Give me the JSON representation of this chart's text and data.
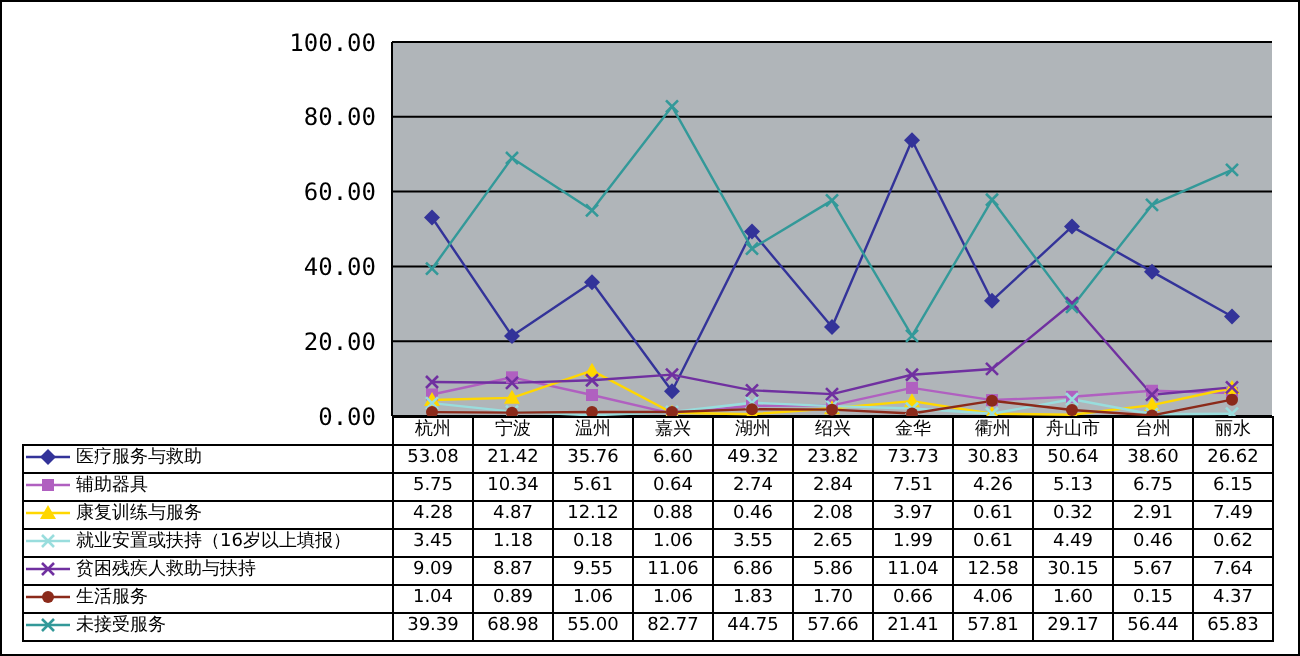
{
  "chart_data": {
    "type": "line",
    "categories": [
      "杭州",
      "宁波",
      "温州",
      "嘉兴",
      "湖州",
      "绍兴",
      "金华",
      "衢州",
      "舟山市",
      "台州",
      "丽水"
    ],
    "ylim": [
      0,
      100
    ],
    "yticks": [
      {
        "value": 0,
        "label": "0.00"
      },
      {
        "value": 20,
        "label": "20.00"
      },
      {
        "value": 40,
        "label": "40.00"
      },
      {
        "value": 60,
        "label": "60.00"
      },
      {
        "value": 80,
        "label": "80.00"
      },
      {
        "value": 100,
        "label": "100.00"
      }
    ],
    "grid": "y",
    "legend": "bottom",
    "line_style": "solid",
    "series": [
      {
        "name": "医疗服务与救助",
        "color": "#333399",
        "marker": "diamond",
        "values": [
          53.08,
          21.42,
          35.76,
          6.6,
          49.32,
          23.82,
          73.73,
          30.83,
          50.64,
          38.6,
          26.62
        ],
        "value_labels": [
          "53.08",
          "21.42",
          "35.76",
          "6.60",
          "49.32",
          "23.82",
          "73.73",
          "30.83",
          "50.64",
          "38.60",
          "26.62"
        ]
      },
      {
        "name": "辅助器具",
        "color": "#b060c0",
        "marker": "square",
        "values": [
          5.75,
          10.34,
          5.61,
          0.64,
          2.74,
          2.84,
          7.51,
          4.26,
          5.13,
          6.75,
          6.15
        ],
        "value_labels": [
          "5.75",
          "10.34",
          "5.61",
          "0.64",
          "2.74",
          "2.84",
          "7.51",
          "4.26",
          "5.13",
          "6.75",
          "6.15"
        ]
      },
      {
        "name": "康复训练与服务",
        "color": "#ffd700",
        "marker": "triangle",
        "values": [
          4.28,
          4.87,
          12.12,
          0.88,
          0.46,
          2.08,
          3.97,
          0.61,
          0.32,
          2.91,
          7.49
        ],
        "value_labels": [
          "4.28",
          "4.87",
          "12.12",
          "0.88",
          "0.46",
          "2.08",
          "3.97",
          "0.61",
          "0.32",
          "2.91",
          "7.49"
        ]
      },
      {
        "name": "就业安置或扶持（16岁以上填报）",
        "color": "#99dddd",
        "marker": "cross",
        "values": [
          3.45,
          1.18,
          0.18,
          1.06,
          3.55,
          2.65,
          1.99,
          0.61,
          4.49,
          0.46,
          0.62
        ],
        "value_labels": [
          "3.45",
          "1.18",
          "0.18",
          "1.06",
          "3.55",
          "2.65",
          "1.99",
          "0.61",
          "4.49",
          "0.46",
          "0.62"
        ]
      },
      {
        "name": "贫困残疾人救助与扶持",
        "color": "#7030a0",
        "marker": "cross",
        "values": [
          9.09,
          8.87,
          9.55,
          11.06,
          6.86,
          5.86,
          11.04,
          12.58,
          30.15,
          5.67,
          7.64
        ],
        "value_labels": [
          "9.09",
          "8.87",
          "9.55",
          "11.06",
          "6.86",
          "5.86",
          "11.04",
          "12.58",
          "30.15",
          "5.67",
          "7.64"
        ]
      },
      {
        "name": "生活服务",
        "color": "#8b2a1a",
        "marker": "circle",
        "values": [
          1.04,
          0.89,
          1.06,
          1.06,
          1.83,
          1.7,
          0.66,
          4.06,
          1.6,
          0.15,
          4.37
        ],
        "value_labels": [
          "1.04",
          "0.89",
          "1.06",
          "1.06",
          "1.83",
          "1.70",
          "0.66",
          "4.06",
          "1.60",
          "0.15",
          "4.37"
        ]
      },
      {
        "name": "未接受服务",
        "color": "#339999",
        "marker": "cross",
        "values": [
          39.39,
          68.98,
          55.0,
          82.77,
          44.75,
          57.66,
          21.41,
          57.81,
          29.17,
          56.44,
          65.83
        ],
        "value_labels": [
          "39.39",
          "68.98",
          "55.00",
          "82.77",
          "44.75",
          "57.66",
          "21.41",
          "57.81",
          "29.17",
          "56.44",
          "65.83"
        ]
      }
    ]
  }
}
